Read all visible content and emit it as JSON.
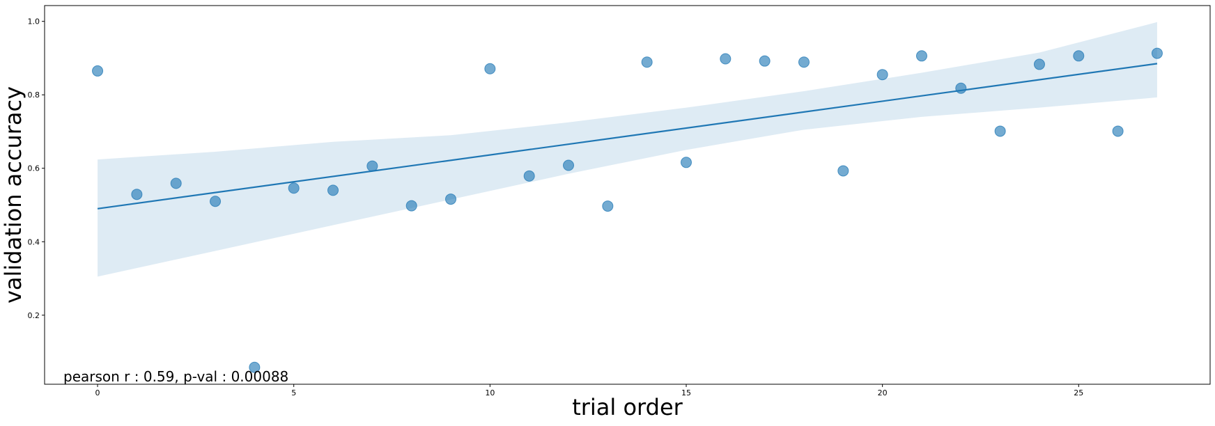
{
  "chart_data": {
    "type": "scatter",
    "title": "",
    "xlabel": "trial order",
    "ylabel": "validation accuracy",
    "xlim": [
      -1.35,
      28.35
    ],
    "ylim": [
      0.012,
      1.043
    ],
    "xticks": [
      0,
      5,
      10,
      15,
      20,
      25
    ],
    "yticks": [
      0.2,
      0.4,
      0.6,
      0.8,
      1.0
    ],
    "xtick_labels": [
      "0",
      "5",
      "10",
      "15",
      "20",
      "25"
    ],
    "ytick_labels": [
      "0.2",
      "0.4",
      "0.6",
      "0.8",
      "1.0"
    ],
    "grid": false,
    "legend": "none",
    "annotation": "pearson r : 0.59,  p-val : 0.00088",
    "series": [
      {
        "kind": "points",
        "color": "#1f77b4",
        "x": [
          0,
          1,
          2,
          3,
          4,
          5,
          6,
          7,
          8,
          9,
          10,
          11,
          12,
          13,
          14,
          15,
          16,
          17,
          18,
          19,
          20,
          21,
          22,
          23,
          24,
          25,
          26,
          27
        ],
        "y": [
          0.865,
          0.529,
          0.559,
          0.51,
          0.058,
          0.546,
          0.54,
          0.606,
          0.498,
          0.516,
          0.871,
          0.579,
          0.608,
          0.497,
          0.889,
          0.616,
          0.898,
          0.892,
          0.889,
          0.593,
          0.855,
          0.906,
          0.818,
          0.701,
          0.883,
          0.906,
          0.701,
          0.913
        ]
      },
      {
        "kind": "regression-line",
        "color": "#1f77b4",
        "x": [
          0,
          27
        ],
        "y": [
          0.49,
          0.885
        ]
      }
    ],
    "confidence_band": {
      "color": "#1f77b4",
      "x": [
        0,
        3,
        6,
        9,
        12,
        15,
        18,
        21,
        24,
        27
      ],
      "lower": [
        0.305,
        0.375,
        0.445,
        0.515,
        0.585,
        0.65,
        0.705,
        0.74,
        0.765,
        0.793
      ],
      "upper": [
        0.624,
        0.645,
        0.672,
        0.69,
        0.725,
        0.765,
        0.81,
        0.86,
        0.915,
        0.998
      ]
    }
  }
}
